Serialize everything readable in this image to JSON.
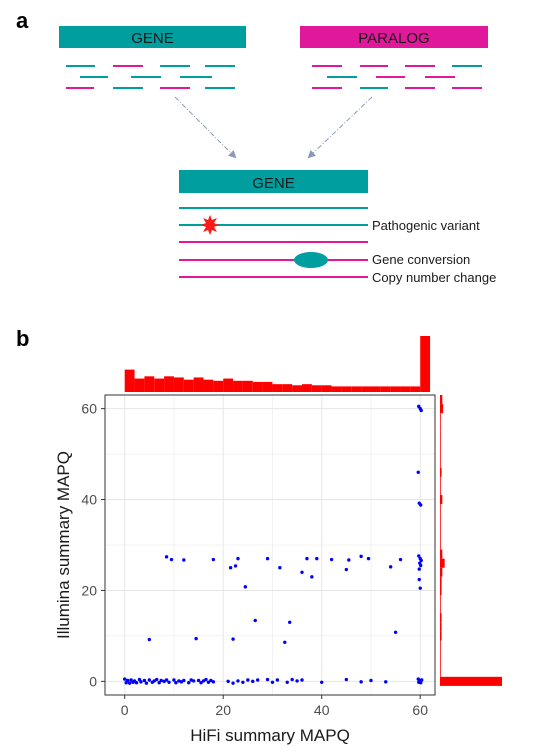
{
  "panel_a": {
    "label": "a",
    "gene_label": "GENE",
    "paralog_label": "PARALOG",
    "result_gene_label": "GENE",
    "annotations": [
      "Pathogenic variant",
      "Gene conversion",
      "Copy number change"
    ],
    "colors": {
      "gene": "#009e9e",
      "paralog": "#e0199a",
      "variant": "#ff1a1a",
      "arrow": "#8a9bb8"
    }
  },
  "panel_b": {
    "label": "b"
  },
  "chart_data": {
    "type": "scatter",
    "xlabel": "HiFi summary MAPQ",
    "ylabel": "Illumina summary MAPQ",
    "xlim": [
      -4,
      63
    ],
    "ylim": [
      -3,
      63
    ],
    "x_ticks": [
      0,
      20,
      40,
      60
    ],
    "y_ticks": [
      0,
      20,
      40,
      60
    ],
    "grid": true,
    "point_color": "#0000ff",
    "hist_color": "#ff0000",
    "points": [
      [
        0,
        0.5
      ],
      [
        0.3,
        -0.3
      ],
      [
        0.6,
        0.2
      ],
      [
        1,
        -0.4
      ],
      [
        1.3,
        0.3
      ],
      [
        1.7,
        -0.2
      ],
      [
        2,
        0.1
      ],
      [
        2.4,
        -0.3
      ],
      [
        3,
        0.4
      ],
      [
        3.3,
        -0.1
      ],
      [
        4,
        0.2
      ],
      [
        4.4,
        -0.4
      ],
      [
        5,
        0.3
      ],
      [
        5.6,
        -0.2
      ],
      [
        6,
        0.1
      ],
      [
        6.5,
        0.4
      ],
      [
        7,
        -0.3
      ],
      [
        7.4,
        0.2
      ],
      [
        8,
        0
      ],
      [
        8.5,
        0.3
      ],
      [
        9,
        -0.2
      ],
      [
        10,
        0.3
      ],
      [
        10.4,
        -0.3
      ],
      [
        11,
        0.1
      ],
      [
        11.5,
        -0.1
      ],
      [
        12,
        0.2
      ],
      [
        13,
        -0.3
      ],
      [
        13.5,
        0.3
      ],
      [
        14,
        0.1
      ],
      [
        15,
        0.2
      ],
      [
        15.5,
        -0.3
      ],
      [
        16,
        0.1
      ],
      [
        16.5,
        0.4
      ],
      [
        17,
        -0.2
      ],
      [
        17.5,
        0.2
      ],
      [
        18,
        -0.1
      ],
      [
        21,
        0
      ],
      [
        22,
        -0.4
      ],
      [
        23,
        0.1
      ],
      [
        24,
        -0.2
      ],
      [
        25,
        0.3
      ],
      [
        26,
        0
      ],
      [
        27,
        0.3
      ],
      [
        29,
        0.4
      ],
      [
        30,
        -0.2
      ],
      [
        31,
        0.3
      ],
      [
        33,
        -0.2
      ],
      [
        34,
        0.4
      ],
      [
        35,
        0.1
      ],
      [
        36,
        0.3
      ],
      [
        40,
        -0.2
      ],
      [
        45,
        0.4
      ],
      [
        48,
        -0.1
      ],
      [
        50,
        0.2
      ],
      [
        53,
        -0.1
      ],
      [
        5,
        9.2
      ],
      [
        14.5,
        9.4
      ],
      [
        22,
        9.3
      ],
      [
        26.5,
        13.4
      ],
      [
        32.5,
        8.6
      ],
      [
        33.5,
        13
      ],
      [
        55,
        10.8
      ],
      [
        24.5,
        20.8
      ],
      [
        8.5,
        27.4
      ],
      [
        9.5,
        26.8
      ],
      [
        12,
        26.7
      ],
      [
        18,
        26.8
      ],
      [
        21.5,
        25
      ],
      [
        22.5,
        25.4
      ],
      [
        23,
        27
      ],
      [
        29,
        27
      ],
      [
        31.5,
        25
      ],
      [
        36,
        24
      ],
      [
        37,
        27
      ],
      [
        38,
        23
      ],
      [
        39,
        27
      ],
      [
        42,
        26.8
      ],
      [
        45,
        24.6
      ],
      [
        45.5,
        26.7
      ],
      [
        48,
        27.5
      ],
      [
        49.5,
        27
      ],
      [
        54,
        25.2
      ],
      [
        56,
        26.8
      ],
      [
        59.8,
        24.7
      ],
      [
        59.7,
        60.5
      ],
      [
        60,
        60
      ],
      [
        60.2,
        59.6
      ],
      [
        59.6,
        46
      ],
      [
        59.8,
        39.2
      ],
      [
        60.1,
        38.8
      ],
      [
        59.7,
        27.6
      ],
      [
        60,
        27
      ],
      [
        60.2,
        26.6
      ],
      [
        59.9,
        26
      ],
      [
        60.1,
        25.5
      ],
      [
        59.8,
        22.4
      ],
      [
        60,
        20.5
      ],
      [
        59.6,
        0.5
      ],
      [
        59.9,
        0.2
      ],
      [
        60.1,
        -0.3
      ],
      [
        60.3,
        0.3
      ],
      [
        59.7,
        -0.2
      ],
      [
        60,
        0.1
      ]
    ],
    "x_hist": {
      "bin_starts": [
        0,
        2,
        4,
        6,
        8,
        10,
        12,
        14,
        16,
        18,
        20,
        22,
        24,
        26,
        28,
        30,
        32,
        34,
        36,
        38,
        40,
        42,
        44,
        46,
        48,
        50,
        52,
        54,
        56,
        58,
        60
      ],
      "counts": [
        10,
        6,
        7,
        6,
        7,
        6.5,
        5.5,
        6.5,
        5.5,
        5,
        6,
        5,
        5,
        4.5,
        4.5,
        3.5,
        3.5,
        3,
        3.5,
        3,
        3,
        2.5,
        2.5,
        2.5,
        2.5,
        2.5,
        2.5,
        2.5,
        2.5,
        2.5,
        25
      ]
    },
    "y_hist": {
      "bin_starts": [
        -1,
        1,
        3,
        5,
        7,
        9,
        11,
        13,
        15,
        17,
        19,
        21,
        23,
        25,
        27,
        29,
        31,
        33,
        35,
        37,
        39,
        41,
        43,
        45,
        47,
        49,
        51,
        53,
        55,
        57,
        59,
        61
      ],
      "counts": [
        40,
        0.5,
        0.5,
        0.5,
        0.5,
        1,
        1,
        1,
        0.5,
        0.5,
        1,
        1,
        1.5,
        3,
        1.5,
        0.5,
        0.5,
        0.5,
        0.5,
        0.5,
        1.5,
        0.5,
        0.5,
        1,
        0.5,
        0.5,
        0.5,
        0.5,
        0.5,
        0.5,
        2,
        1.5
      ]
    }
  }
}
